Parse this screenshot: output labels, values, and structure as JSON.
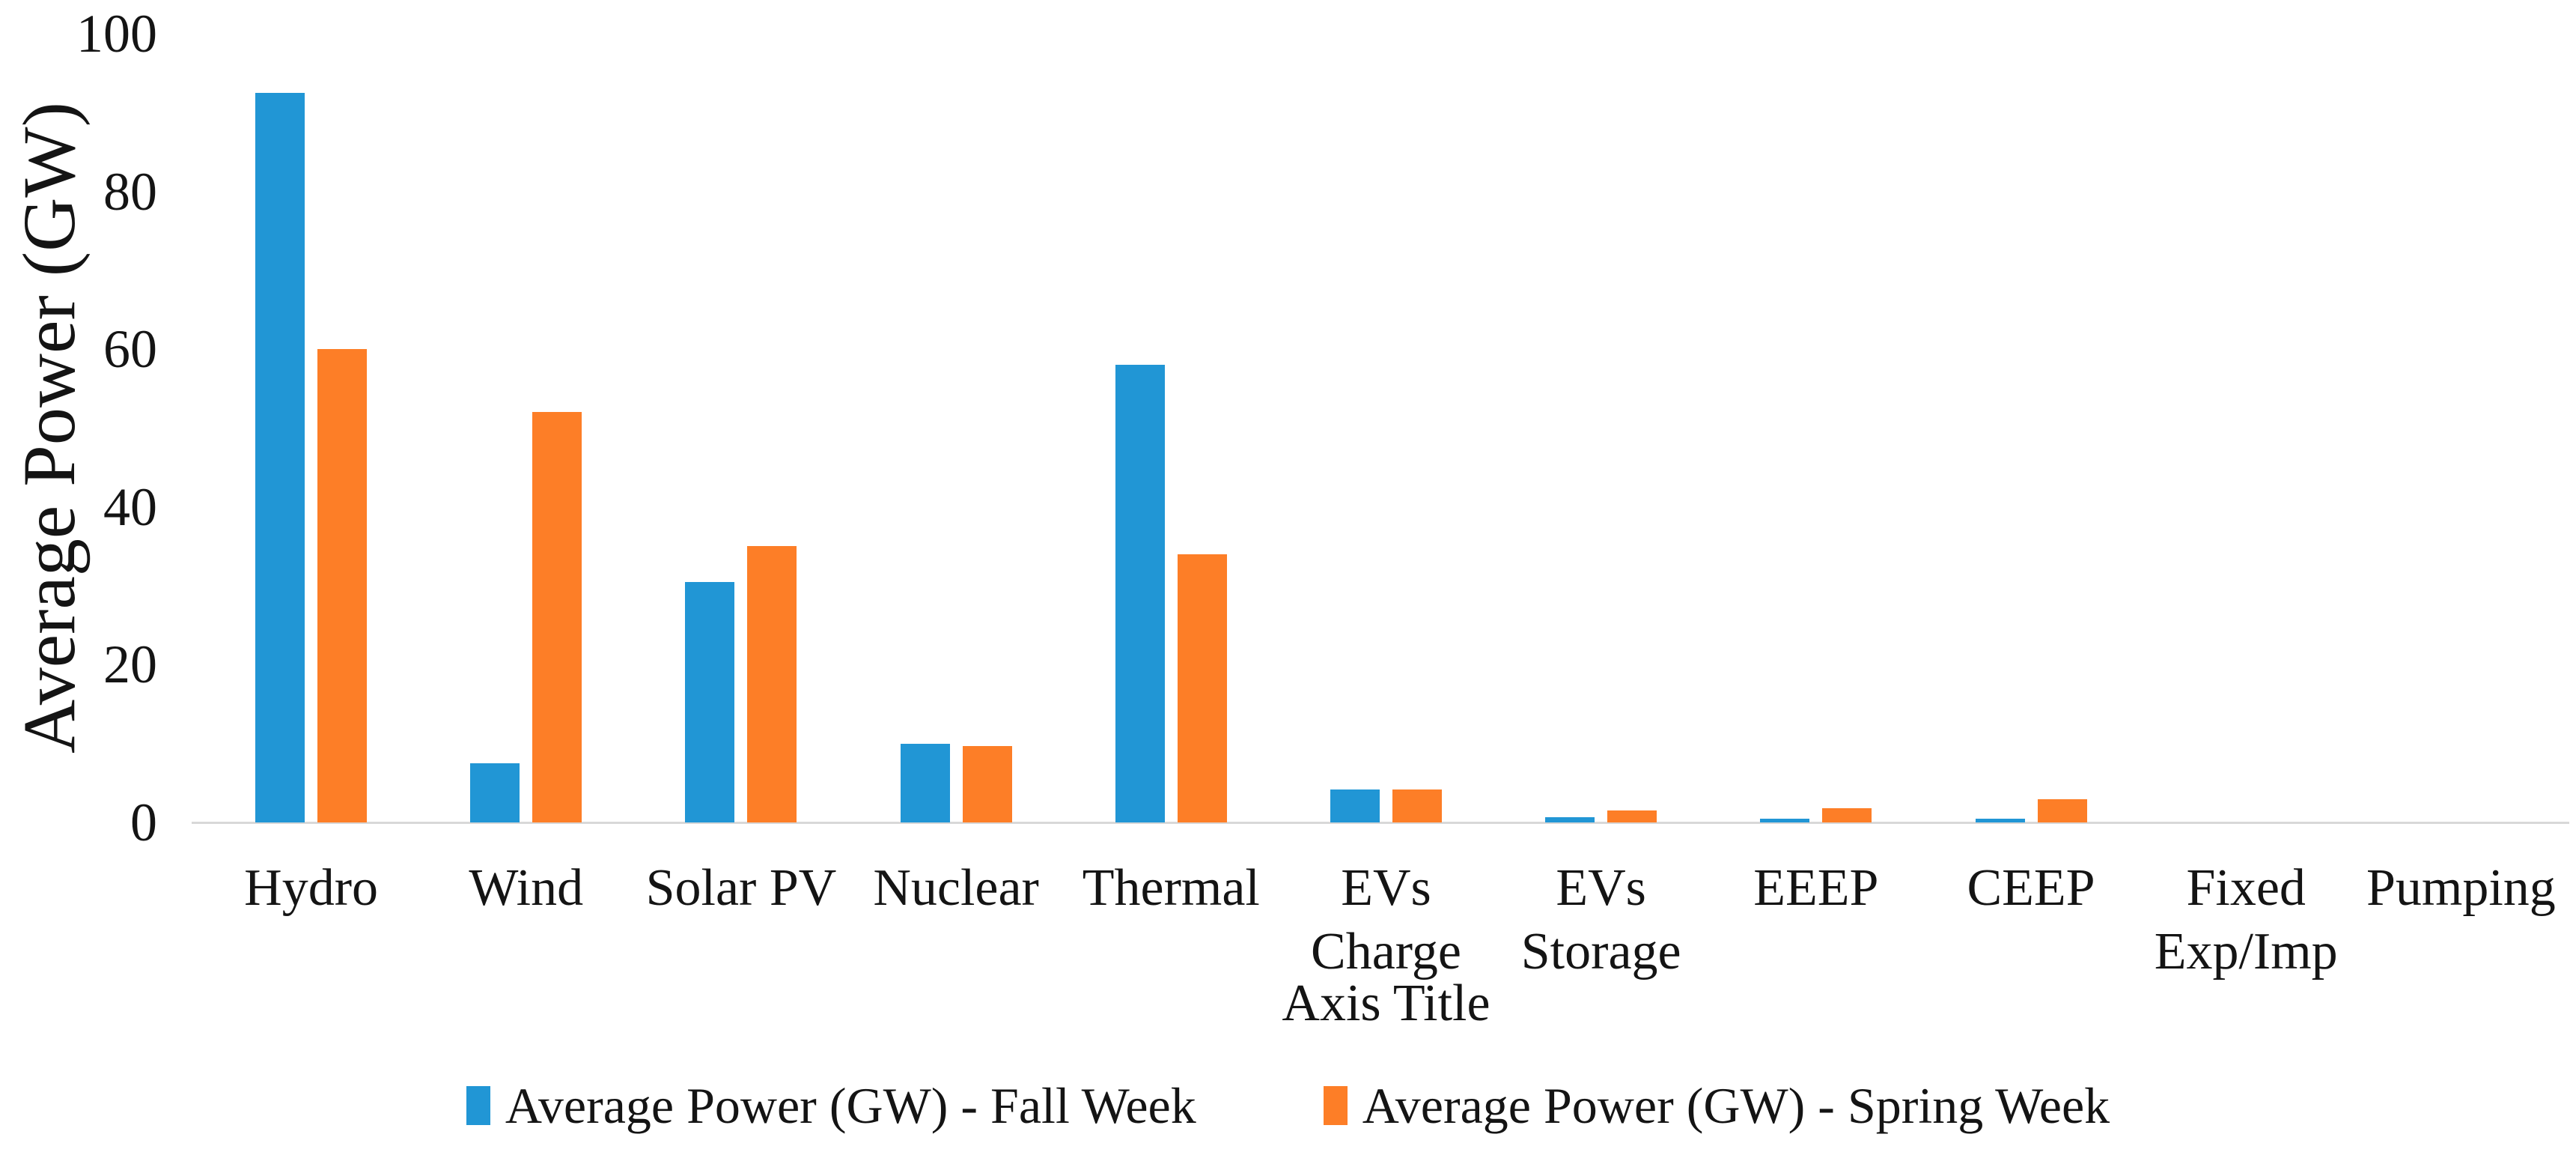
{
  "chart_data": {
    "type": "bar",
    "title": "",
    "categories": [
      "Hydro",
      "Wind",
      "Solar PV",
      "Nuclear",
      "Thermal",
      "EVs\nCharge",
      "EVs\nStorage",
      "EEEP",
      "CEEP",
      "Fixed\nExp/Imp",
      "Pumping"
    ],
    "series": [
      {
        "name": "Average Power (GW) - Fall Week",
        "color": "#2196D5",
        "values": [
          92.5,
          7.5,
          30.5,
          10,
          58,
          4.2,
          0.7,
          0.5,
          0.5,
          0,
          0
        ]
      },
      {
        "name": "Average Power (GW) - Spring Week",
        "color": "#FD7E27",
        "values": [
          60,
          52,
          35,
          9.7,
          34,
          4.2,
          1.5,
          1.8,
          2.9,
          0,
          0
        ]
      }
    ],
    "xlabel": "Axis Title",
    "ylabel": "Average Power (GW)",
    "ylim": [
      0,
      100
    ],
    "yticks": [
      0,
      20,
      40,
      60,
      80,
      100
    ],
    "grid": false,
    "legend_position": "bottom",
    "background": "#FFFFFF",
    "text_color": "#141414",
    "axis_line_color": "#D8D8D8"
  }
}
